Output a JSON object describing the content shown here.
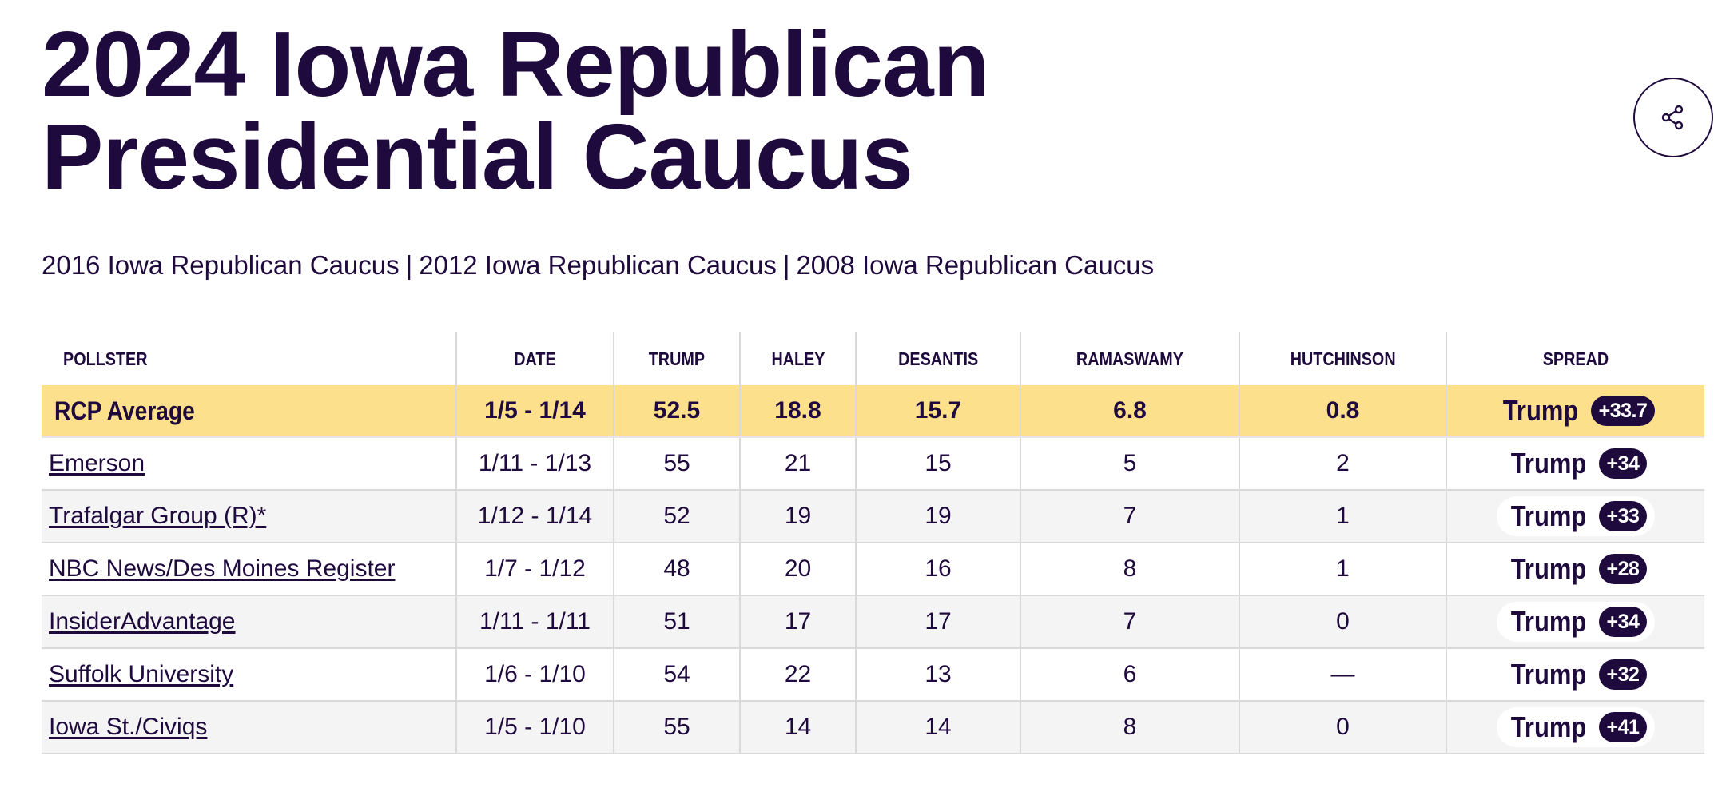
{
  "page": {
    "title_line1": "2024 Iowa Republican",
    "title_line2": "Presidential Caucus"
  },
  "share_icon": "share-icon",
  "related_links": [
    "2016 Iowa Republican Caucus",
    "2012 Iowa Republican Caucus",
    "2008 Iowa Republican Caucus"
  ],
  "related_separator": "|",
  "table": {
    "headers": [
      "POLLSTER",
      "DATE",
      "TRUMP",
      "HALEY",
      "DESANTIS",
      "RAMASWAMY",
      "HUTCHINSON",
      "SPREAD"
    ],
    "average": {
      "pollster": "RCP Average",
      "date": "1/5 - 1/14",
      "trump": "52.5",
      "haley": "18.8",
      "desantis": "15.7",
      "ramaswamy": "6.8",
      "hutchinson": "0.8",
      "spread_name": "Trump",
      "spread_value": "+33.7"
    },
    "rows": [
      {
        "pollster": "Emerson",
        "date": "1/11 - 1/13",
        "trump": "55",
        "haley": "21",
        "desantis": "15",
        "ramaswamy": "5",
        "hutchinson": "2",
        "spread_name": "Trump",
        "spread_value": "+34"
      },
      {
        "pollster": "Trafalgar Group (R)*",
        "date": "1/12 - 1/14",
        "trump": "52",
        "haley": "19",
        "desantis": "19",
        "ramaswamy": "7",
        "hutchinson": "1",
        "spread_name": "Trump",
        "spread_value": "+33"
      },
      {
        "pollster": "NBC News/Des Moines Register",
        "date": "1/7 - 1/12",
        "trump": "48",
        "haley": "20",
        "desantis": "16",
        "ramaswamy": "8",
        "hutchinson": "1",
        "spread_name": "Trump",
        "spread_value": "+28"
      },
      {
        "pollster": "InsiderAdvantage",
        "date": "1/11 - 1/11",
        "trump": "51",
        "haley": "17",
        "desantis": "17",
        "ramaswamy": "7",
        "hutchinson": "0",
        "spread_name": "Trump",
        "spread_value": "+34"
      },
      {
        "pollster": "Suffolk University",
        "date": "1/6 - 1/10",
        "trump": "54",
        "haley": "22",
        "desantis": "13",
        "ramaswamy": "6",
        "hutchinson": "—",
        "spread_name": "Trump",
        "spread_value": "+32"
      },
      {
        "pollster": "Iowa St./Civiqs",
        "date": "1/5 - 1/10",
        "trump": "55",
        "haley": "14",
        "desantis": "14",
        "ramaswamy": "8",
        "hutchinson": "0",
        "spread_name": "Trump",
        "spread_value": "+41"
      }
    ]
  },
  "colors": {
    "text": "#1f0a3d",
    "average_row": "#fde08c",
    "stripe": "#f4f4f4",
    "badge": "#1f0a3d"
  }
}
